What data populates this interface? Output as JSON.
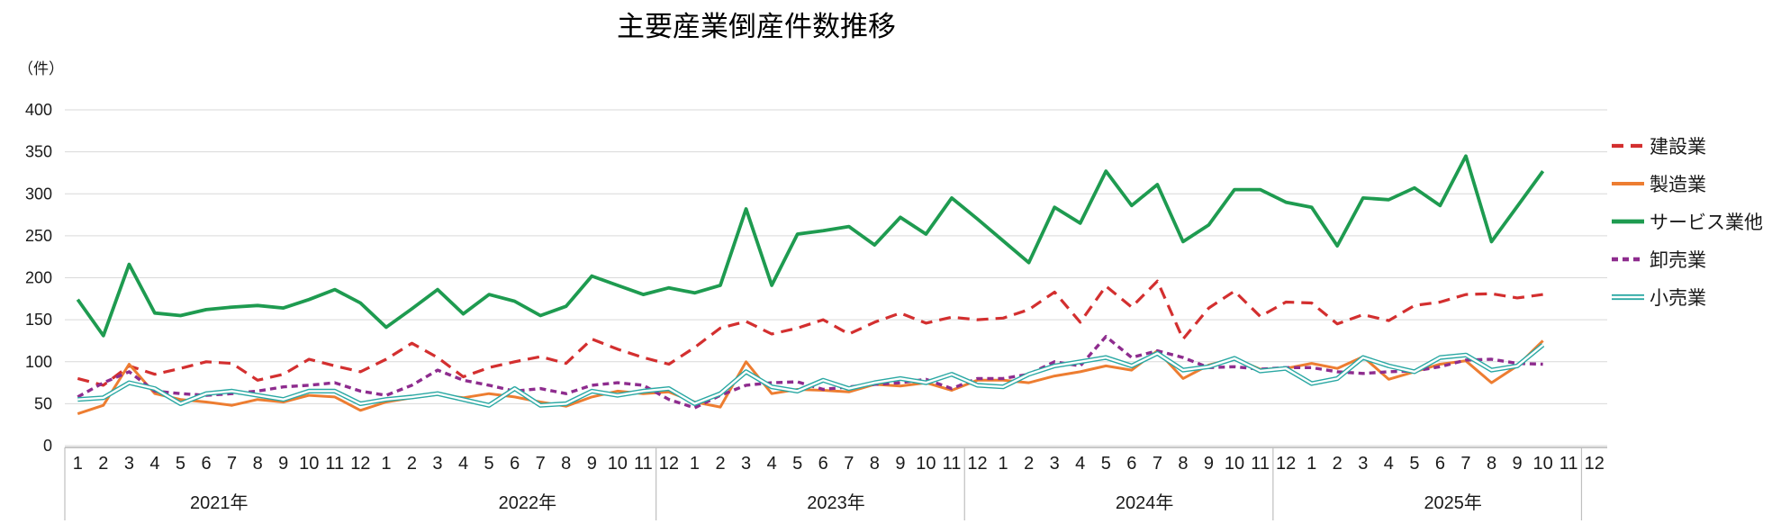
{
  "title": "主要産業倒産件数推移",
  "unit_label": "（件）",
  "chart_data": {
    "type": "line",
    "grid": true,
    "legend_position": "right",
    "ylim": [
      0,
      400
    ],
    "y_ticks": [
      0,
      50,
      100,
      150,
      200,
      250,
      300,
      350,
      400
    ],
    "months": [
      "1",
      "2",
      "3",
      "4",
      "5",
      "6",
      "7",
      "8",
      "9",
      "10",
      "11",
      "12"
    ],
    "years": [
      "2021年",
      "2022年",
      "2023年",
      "2024年",
      "2025年"
    ],
    "year_separators_after_category": [
      23,
      35,
      47,
      59
    ],
    "axis_color": "#a6a6a6",
    "grid_color": "#d9d9d9",
    "separator_color": "#bfbfbf",
    "text_color": "#1a1a1a",
    "series": [
      {
        "name": "建設業",
        "color": "#d32f2f",
        "style": "dashed",
        "values": [
          80,
          72,
          95,
          85,
          92,
          100,
          98,
          78,
          85,
          103,
          95,
          88,
          103,
          122,
          105,
          82,
          93,
          100,
          106,
          98,
          127,
          115,
          105,
          97,
          117,
          140,
          148,
          133,
          140,
          150,
          133,
          147,
          158,
          146,
          153,
          150,
          152,
          162,
          183,
          147,
          190,
          165,
          196,
          127,
          164,
          184,
          154,
          171,
          170,
          145,
          156,
          149,
          167,
          171,
          180,
          181,
          176,
          180
        ]
      },
      {
        "name": "製造業",
        "color": "#ed7d31",
        "style": "solid",
        "values": [
          38,
          48,
          97,
          62,
          55,
          52,
          48,
          55,
          52,
          60,
          58,
          42,
          52,
          57,
          61,
          57,
          62,
          58,
          52,
          47,
          58,
          65,
          62,
          64,
          52,
          46,
          100,
          62,
          67,
          66,
          64,
          73,
          71,
          75,
          66,
          78,
          78,
          75,
          83,
          88,
          95,
          90,
          113,
          80,
          96,
          104,
          91,
          92,
          98,
          92,
          106,
          79,
          88,
          97,
          101,
          75,
          95,
          125
        ]
      },
      {
        "name": "サービス業他",
        "color": "#1e9b50",
        "style": "solid-thick",
        "values": [
          174,
          131,
          216,
          158,
          155,
          162,
          165,
          167,
          164,
          174,
          186,
          170,
          141,
          163,
          186,
          157,
          180,
          172,
          155,
          166,
          202,
          191,
          180,
          188,
          182,
          191,
          282,
          191,
          252,
          256,
          261,
          239,
          272,
          252,
          295,
          270,
          244,
          218,
          284,
          265,
          327,
          286,
          311,
          243,
          263,
          305,
          305,
          290,
          284,
          238,
          295,
          293,
          307,
          286,
          345,
          243,
          285,
          327
        ]
      },
      {
        "name": "卸売業",
        "color": "#8e2c8e",
        "style": "dashed-small",
        "values": [
          58,
          75,
          88,
          65,
          62,
          60,
          62,
          65,
          70,
          72,
          75,
          65,
          60,
          72,
          90,
          78,
          72,
          65,
          68,
          62,
          72,
          75,
          72,
          55,
          45,
          60,
          72,
          75,
          76,
          67,
          70,
          73,
          75,
          79,
          68,
          80,
          80,
          85,
          100,
          95,
          130,
          105,
          113,
          105,
          93,
          94,
          91,
          93,
          93,
          88,
          86,
          88,
          89,
          94,
          102,
          103,
          98,
          97
        ]
      },
      {
        "name": "小売業",
        "color": "#2aa8a3",
        "style": "double",
        "values": [
          55,
          57,
          75,
          68,
          50,
          62,
          65,
          60,
          55,
          65,
          65,
          50,
          55,
          58,
          62,
          55,
          48,
          68,
          48,
          50,
          65,
          60,
          65,
          68,
          50,
          62,
          88,
          70,
          65,
          78,
          68,
          75,
          80,
          75,
          85,
          72,
          70,
          85,
          95,
          100,
          105,
          95,
          110,
          90,
          94,
          104,
          89,
          92,
          74,
          80,
          105,
          95,
          88,
          105,
          108,
          90,
          95,
          120
        ]
      }
    ]
  }
}
